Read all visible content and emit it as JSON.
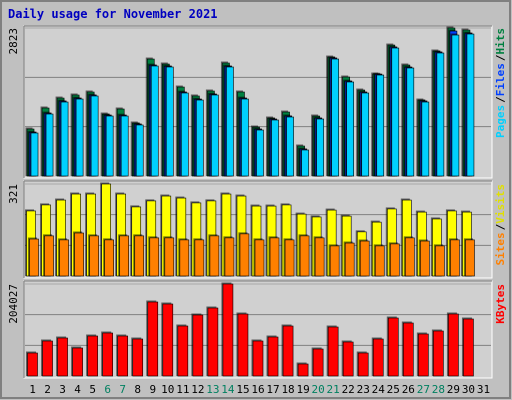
{
  "title": "Daily usage for November 2021",
  "separator": "/",
  "chart_data": [
    {
      "type": "bar",
      "ylim": [
        0,
        2823
      ],
      "yticks": [
        2823
      ],
      "grid": true,
      "series": [
        {
          "name": "Hits",
          "color": "#008040",
          "values": [
            896,
            1297,
            1487,
            1545,
            1602,
            1182,
            1278,
            1011,
            2231,
            2136,
            1697,
            1526,
            1621,
            2155,
            1602,
            934,
            1106,
            1220,
            572,
            1144,
            2269,
            1888,
            1640,
            1945,
            2498,
            2117,
            1449,
            2384,
            2823,
            2784,
            null
          ]
        },
        {
          "name": "Files",
          "color": "#0040ff",
          "values": [
            835,
            1200,
            1430,
            1485,
            1545,
            1160,
            1160,
            990,
            2115,
            2095,
            1600,
            1465,
            1560,
            2095,
            1485,
            895,
            1085,
            1145,
            515,
            1105,
            2250,
            1810,
            1600,
            1940,
            2460,
            2075,
            1430,
            2365,
            2765,
            2725,
            null
          ]
        },
        {
          "name": "Pages",
          "color": "#00d0ff",
          "values": [
            820,
            1182,
            1411,
            1468,
            1526,
            1144,
            1144,
            973,
            2098,
            2079,
            1583,
            1449,
            1545,
            2079,
            1468,
            877,
            1068,
            1125,
            496,
            1087,
            2231,
            1793,
            1583,
            1926,
            2441,
            2060,
            1411,
            2346,
            2689,
            2708,
            null
          ]
        }
      ]
    },
    {
      "type": "bar",
      "ylim": [
        0,
        321
      ],
      "yticks": [
        321
      ],
      "grid": true,
      "series": [
        {
          "name": "Visits",
          "color": "#ffff00",
          "values": [
            227,
            248,
            265,
            286,
            286,
            321,
            286,
            241,
            262,
            279,
            272,
            255,
            262,
            286,
            279,
            244,
            244,
            248,
            216,
            206,
            230,
            209,
            154,
            188,
            234,
            265,
            223,
            199,
            227,
            223,
            null
          ]
        },
        {
          "name": "Sites",
          "color": "#ff8000",
          "values": [
            129,
            140,
            126,
            150,
            140,
            126,
            140,
            140,
            133,
            133,
            126,
            126,
            140,
            133,
            147,
            126,
            133,
            126,
            140,
            133,
            105,
            115,
            122,
            105,
            112,
            133,
            122,
            105,
            126,
            126,
            null
          ]
        }
      ]
    },
    {
      "type": "bar",
      "ylim": [
        0,
        204027
      ],
      "yticks": [
        204027
      ],
      "grid": true,
      "categories": [
        "1",
        "2",
        "3",
        "4",
        "5",
        "6",
        "7",
        "8",
        "9",
        "10",
        "11",
        "12",
        "13",
        "14",
        "15",
        "16",
        "17",
        "18",
        "19",
        "20",
        "21",
        "22",
        "23",
        "24",
        "25",
        "26",
        "27",
        "28",
        "29",
        "30",
        "31"
      ],
      "category_colors": [
        "#000000",
        "#000000",
        "#000000",
        "#000000",
        "#000000",
        "#008060",
        "#008060",
        "#000000",
        "#000000",
        "#000000",
        "#000000",
        "#000000",
        "#008060",
        "#008060",
        "#000000",
        "#000000",
        "#000000",
        "#000000",
        "#000000",
        "#008060",
        "#008060",
        "#000000",
        "#000000",
        "#000000",
        "#000000",
        "#000000",
        "#008060",
        "#008060",
        "#000000",
        "#000000",
        "#000000"
      ],
      "series": [
        {
          "name": "KBytes",
          "color": "#ff0000",
          "values": [
            51007,
            77620,
            84273,
            62096,
            88708,
            95361,
            88708,
            82055,
            164110,
            159674,
            110885,
            135280,
            150804,
            204027,
            137497,
            77620,
            86490,
            110885,
            26612,
            59878,
            108667,
            75402,
            51007,
            82055,
            128627,
            117538,
            93143,
            99797,
            137497,
            126409,
            null
          ]
        }
      ]
    }
  ]
}
